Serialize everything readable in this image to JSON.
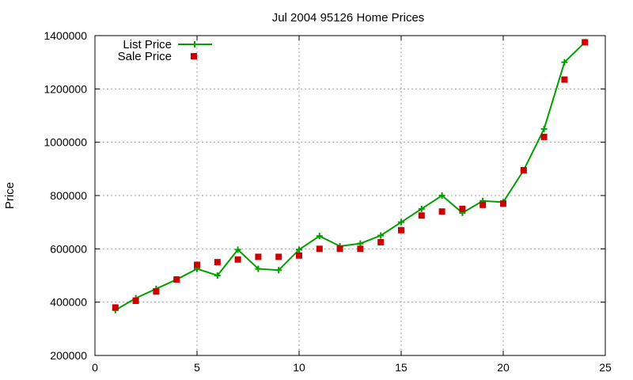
{
  "chart_data": {
    "type": "line",
    "title": "Jul 2004 95126 Home Prices",
    "xlabel": "",
    "ylabel": "Price",
    "xlim": [
      0,
      25
    ],
    "ylim": [
      200000,
      1400000
    ],
    "x_ticks": [
      "0",
      "5",
      "10",
      "15",
      "20",
      "25"
    ],
    "y_ticks": [
      "200000",
      "400000",
      "600000",
      "800000",
      "1000000",
      "1200000",
      "1400000"
    ],
    "grid": true,
    "legend_position": "top-left",
    "x": [
      1,
      2,
      3,
      4,
      5,
      6,
      7,
      8,
      9,
      10,
      11,
      12,
      13,
      14,
      15,
      16,
      17,
      18,
      19,
      20,
      21,
      22,
      23,
      24
    ],
    "series": [
      {
        "name": "List Price",
        "style": "line+cross",
        "color": "#00a000",
        "values": [
          370000,
          415000,
          450000,
          485000,
          525000,
          500000,
          597000,
          525000,
          520000,
          597000,
          648000,
          610000,
          620000,
          650000,
          700000,
          750000,
          800000,
          735000,
          780000,
          775000,
          895000,
          1050000,
          1300000,
          1375000
        ]
      },
      {
        "name": "Sale Price",
        "style": "square-points",
        "color": "#cc0000",
        "values": [
          380000,
          405000,
          440000,
          485000,
          540000,
          550000,
          560000,
          570000,
          570000,
          575000,
          600000,
          600000,
          600000,
          625000,
          670000,
          725000,
          740000,
          750000,
          765000,
          770000,
          895000,
          1020000,
          1235000,
          1375000
        ]
      }
    ]
  }
}
